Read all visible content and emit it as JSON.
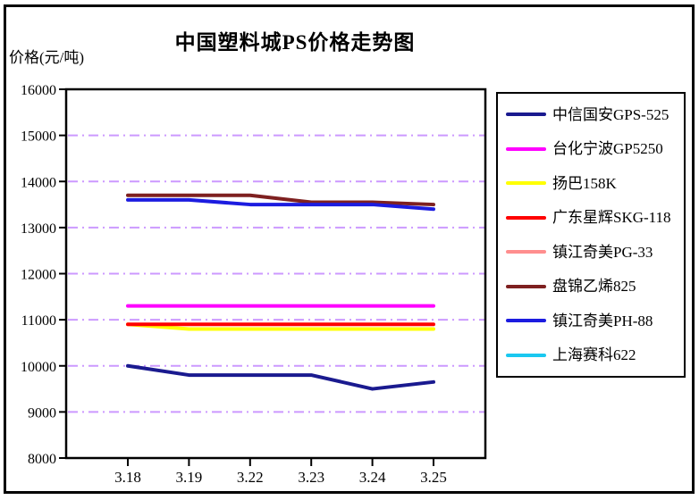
{
  "chart_data": {
    "type": "line",
    "title": "中国塑料城PS价格走势图",
    "ylabel": "价格(元/吨)",
    "xlabel": "",
    "categories": [
      "3.18",
      "3.19",
      "3.22",
      "3.23",
      "3.24",
      "3.25"
    ],
    "ylim": [
      8000,
      16000
    ],
    "ytick_step": 1000,
    "yticks": [
      8000,
      9000,
      10000,
      11000,
      12000,
      13000,
      14000,
      15000,
      16000
    ],
    "grid": "horizontal dash-dot",
    "grid_color": "#CC99FF",
    "legend_position": "right",
    "axis_color": "#000000",
    "series": [
      {
        "name": "中信国安GPS-525",
        "color": "#1A1A8F",
        "visible_in_plot": true,
        "values": [
          10000,
          9800,
          9800,
          9800,
          9500,
          9650
        ]
      },
      {
        "name": "台化宁波GP5250",
        "color": "#FF00FF",
        "visible_in_plot": true,
        "values": [
          11300,
          11300,
          11300,
          11300,
          11300,
          11300
        ]
      },
      {
        "name": "扬巴158K",
        "color": "#FFFF00",
        "visible_in_plot": true,
        "values": [
          10900,
          10800,
          10800,
          10800,
          10800,
          10800
        ]
      },
      {
        "name": "广东星辉SKG-118",
        "color": "#FF0000",
        "visible_in_plot": true,
        "values": [
          10900,
          10900,
          10900,
          10900,
          10900,
          10900
        ]
      },
      {
        "name": "镇江奇美PG-33",
        "color": "#FF8E8E",
        "visible_in_plot": false,
        "values": []
      },
      {
        "name": "盘锦乙烯825",
        "color": "#7E2020",
        "visible_in_plot": true,
        "values": [
          13700,
          13700,
          13700,
          13550,
          13550,
          13500
        ]
      },
      {
        "name": "镇江奇美PH-88",
        "color": "#1C1CE0",
        "visible_in_plot": true,
        "values": [
          13600,
          13600,
          13500,
          13500,
          13500,
          13400
        ]
      },
      {
        "name": "上海赛科622",
        "color": "#1AC8F0",
        "visible_in_plot": false,
        "values": []
      }
    ]
  }
}
